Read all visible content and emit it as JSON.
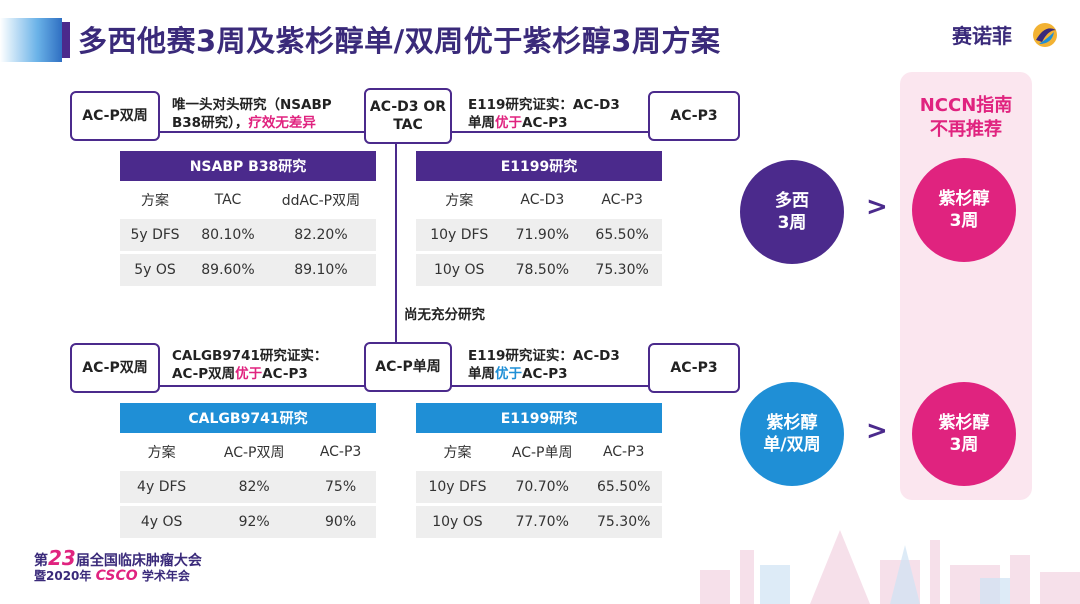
{
  "title": "多西他赛3周及紫杉醇单/双周优于紫杉醇3周方案",
  "logo": {
    "text": "赛诺菲"
  },
  "top": {
    "left_box": "AC-P双周",
    "note_left_line1": "唯一头对头研究（NSABP",
    "note_left_line2a": "B38研究），",
    "note_left_line2b": "疗效无差异",
    "center_box_line1": "AC-D3 OR",
    "center_box_line2": "TAC",
    "note_right_line1": "E119研究证实：AC-D3",
    "note_right_line2a": "单周",
    "note_right_line2b": "优于",
    "note_right_line2c": "AC-P3",
    "right_box": "AC-P3"
  },
  "middle_note": "尚无充分研究",
  "bottom": {
    "left_box": "AC-P双周",
    "note_left_line1": "CALGB9741研究证实：",
    "note_left_line2a": "AC-P双周",
    "note_left_line2b": "优于",
    "note_left_line2c": "AC-P3",
    "center_box": "AC-P单周",
    "note_right_line1": "E119研究证实：AC-D3",
    "note_right_line2a": "单周",
    "note_right_line2b": "优于",
    "note_right_line2c": "AC-P3",
    "right_box": "AC-P3"
  },
  "tables": {
    "nsabp": {
      "title": "NSABP B38研究",
      "header": [
        "方案",
        "TAC",
        "ddAC-P双周"
      ],
      "rows": [
        [
          "5y DFS",
          "80.10%",
          "82.20%"
        ],
        [
          "5y OS",
          "89.60%",
          "89.10%"
        ]
      ]
    },
    "e1199_top": {
      "title": "E1199研究",
      "header": [
        "方案",
        "AC-D3",
        "AC-P3"
      ],
      "rows": [
        [
          "10y DFS",
          "71.90%",
          "65.50%"
        ],
        [
          "10y OS",
          "78.50%",
          "75.30%"
        ]
      ]
    },
    "calgb": {
      "title": "CALGB9741研究",
      "header": [
        "方案",
        "AC-P双周",
        "AC-P3"
      ],
      "rows": [
        [
          "4y DFS",
          "82%",
          "75%"
        ],
        [
          "4y OS",
          "92%",
          "90%"
        ]
      ]
    },
    "e1199_bottom": {
      "title": "E1199研究",
      "header": [
        "方案",
        "AC-P单周",
        "AC-P3"
      ],
      "rows": [
        [
          "10y DFS",
          "70.70%",
          "65.50%"
        ],
        [
          "10y OS",
          "77.70%",
          "75.30%"
        ]
      ]
    }
  },
  "comparison": {
    "gt": ">",
    "top_left_line1": "多西",
    "top_left_line2": "3周",
    "top_right_line1": "紫杉醇",
    "top_right_line2": "3周",
    "bottom_left_line1": "紫杉醇",
    "bottom_left_line2": "单/双周",
    "bottom_right_line1": "紫杉醇",
    "bottom_right_line2": "3周",
    "nccn_line1": "NCCN指南",
    "nccn_line2": "不再推荐"
  },
  "footer": {
    "line1_prefix": "第",
    "line1_num": "23",
    "line1_suffix": "届全国临床肿瘤大会",
    "line2_prefix": "暨2020年",
    "line2_csco": "CSCO",
    "line2_suffix": "学术年会"
  },
  "colors": {
    "purple": "#4b2a8c",
    "blue": "#1f8fd6",
    "pink": "#e0237f"
  }
}
